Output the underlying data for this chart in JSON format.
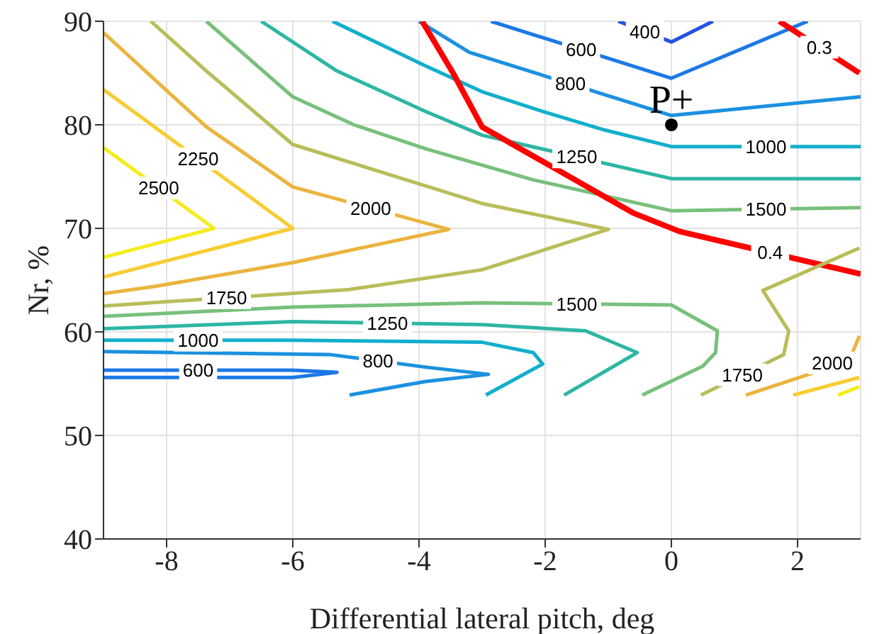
{
  "chart_data": {
    "type": "line",
    "xlabel": "Differential lateral pitch, deg",
    "ylabel": "Nr, %",
    "xlim": [
      -9,
      3
    ],
    "ylim": [
      40,
      90
    ],
    "xticks": [
      -8,
      -6,
      -4,
      -2,
      0,
      2
    ],
    "yticks": [
      40,
      50,
      60,
      70,
      80,
      90
    ],
    "grid": true,
    "marker": "none",
    "series": [
      {
        "name": "2500",
        "color": "#f5ec1c",
        "x": [
          -9,
          -7.25,
          -9
        ],
        "values": [
          77.8,
          70,
          67.2
        ]
      },
      {
        "name": "2250",
        "color": "#f8cc32",
        "x": [
          -9,
          -6,
          -9
        ],
        "values": [
          83.4,
          70,
          65.3
        ]
      },
      {
        "name": "2000",
        "color": "#ebb43e",
        "x": [
          -9,
          -7.37,
          -6,
          -3.53,
          -6,
          -8.18,
          -9
        ],
        "values": [
          88.9,
          79.8,
          74,
          69.9,
          66.7,
          64.4,
          63.7
        ]
      },
      {
        "name": "1750",
        "color": "#b9bd5a",
        "x": [
          -8.25,
          -7.37,
          -6,
          -3,
          -1,
          -3,
          -5.1,
          -9
        ],
        "values": [
          90,
          85.2,
          78.1,
          72.4,
          69.9,
          66,
          64.1,
          62.5
        ]
      },
      {
        "name": "1500",
        "color": "#78c07c",
        "x": [
          -7.37,
          -6,
          -5.03,
          -3.9,
          -2.2,
          0,
          3
        ],
        "values": [
          90,
          82.7,
          80,
          77.7,
          74.7,
          71.7,
          72
        ]
      },
      {
        "name": "1250",
        "color": "#2db6a4",
        "x": [
          -6.5,
          -5.3,
          -3.9,
          -3,
          0,
          3
        ],
        "values": [
          90,
          85.2,
          81.3,
          79,
          74.8,
          74.8
        ]
      },
      {
        "name": "1000",
        "color": "#12afcc",
        "x": [
          -5.37,
          -3.9,
          -3,
          -2.04,
          -1.06,
          0,
          3
        ],
        "values": [
          90,
          85.7,
          83.2,
          81.3,
          79.5,
          77.9,
          77.9
        ]
      },
      {
        "name": "800",
        "color": "#1b91e0",
        "x": [
          -4,
          -3.2,
          0,
          3
        ],
        "values": [
          90,
          87,
          80.9,
          82.7
        ]
      },
      {
        "name": "600",
        "color": "#1c78e6",
        "x": [
          -2.86,
          0,
          2.16
        ],
        "values": [
          90,
          84.5,
          90
        ]
      },
      {
        "name": "400",
        "color": "#2552dc",
        "x": [
          -0.84,
          0,
          0.66
        ],
        "values": [
          90,
          88,
          90
        ]
      },
      {
        "name": "0.4",
        "color": "#ff0000",
        "x": [
          -3.95,
          -3.46,
          -3,
          -0.61,
          0.13,
          3
        ],
        "values": [
          90,
          85,
          79.8,
          71.5,
          69.7,
          65.6
        ]
      },
      {
        "name": "0.3",
        "color": "#ff0000",
        "x": [
          1.71,
          2.98
        ],
        "values": [
          90,
          85
        ]
      },
      {
        "name": "1500",
        "color": "#78c07c",
        "x": [
          -9,
          -6,
          -3,
          0,
          0.73,
          0.7,
          0.5,
          -0.46
        ],
        "values": [
          61.5,
          62.4,
          62.8,
          62.6,
          60.1,
          58,
          56.7,
          53.9
        ]
      },
      {
        "name": "1250",
        "color": "#2db6a4",
        "x": [
          -9,
          -6,
          -3,
          -1.36,
          -0.54,
          -1.7
        ],
        "values": [
          60.3,
          61,
          60.7,
          60.1,
          58,
          53.9
        ]
      },
      {
        "name": "1000",
        "color": "#12afcc",
        "x": [
          -9,
          -6,
          -3,
          -2.19,
          -2.04,
          -2.94
        ],
        "values": [
          59.2,
          59.2,
          59,
          58,
          56.9,
          53.9
        ]
      },
      {
        "name": "800",
        "color": "#1b91e0",
        "x": [
          -9,
          -5.4,
          -3.9,
          -2.9,
          -3.9,
          -5.1
        ],
        "values": [
          58.1,
          57.8,
          56.6,
          55.9,
          55.2,
          53.9
        ]
      },
      {
        "name": "600",
        "color": "#1c78e6",
        "x": [
          -9,
          -6,
          -5.3,
          -6,
          -9
        ],
        "values": [
          56.3,
          56.3,
          56.1,
          55.6,
          55.6
        ]
      },
      {
        "name": "1750",
        "color": "#b9bd5a",
        "x": [
          2.98,
          1.45,
          1.86,
          1.78,
          0.47
        ],
        "values": [
          68.1,
          64,
          60.1,
          57.8,
          53.9
        ]
      },
      {
        "name": "2000",
        "color": "#ebb43e",
        "x": [
          2.98,
          2.87,
          2.23,
          1.18
        ],
        "values": [
          59.6,
          58,
          56,
          53.9
        ]
      },
      {
        "color": "#f8cc32",
        "x": [
          2.98,
          1.93
        ],
        "values": [
          55.6,
          53.9
        ]
      },
      {
        "color": "#f5ec1c",
        "x": [
          2.98,
          2.64
        ],
        "values": [
          54.7,
          53.9
        ]
      },
      {
        "name": "P+",
        "type": "scatter",
        "color": "#000000",
        "marker": "circle",
        "x": [
          0
        ],
        "values": [
          80
        ]
      }
    ]
  }
}
